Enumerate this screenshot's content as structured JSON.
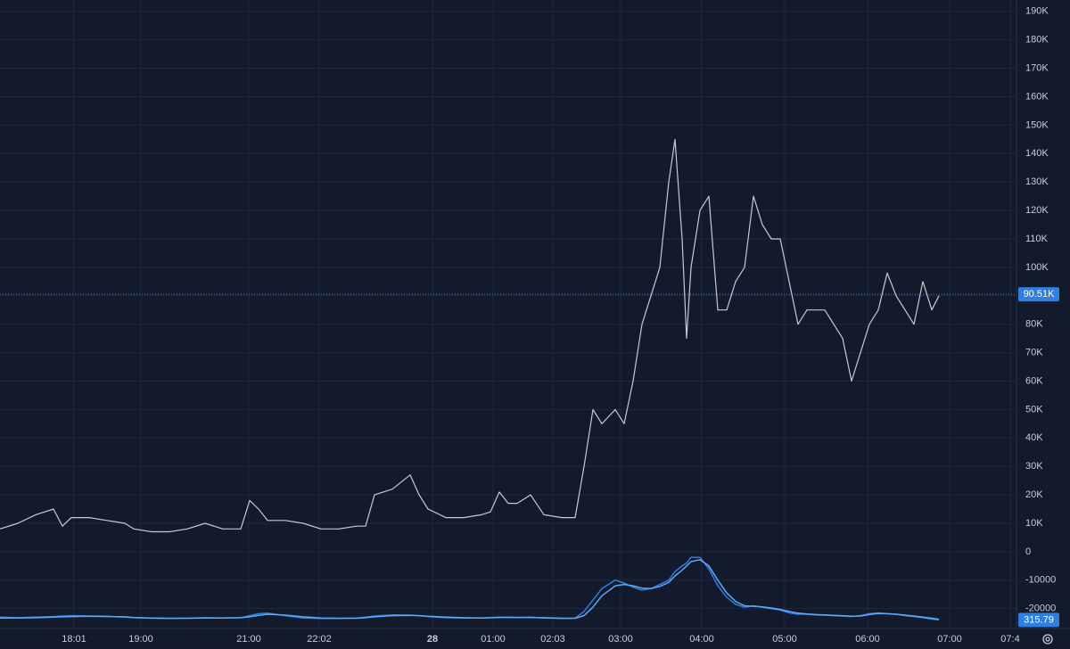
{
  "chart_data": {
    "type": "line",
    "x": [
      0,
      4,
      8,
      12,
      14,
      16,
      20,
      24,
      28,
      30,
      34,
      38,
      42,
      46,
      50,
      54,
      56,
      58,
      60,
      64,
      68,
      72,
      76,
      80,
      82,
      84,
      88,
      92,
      94,
      96,
      100,
      104,
      108,
      110,
      112,
      114,
      116,
      119,
      122,
      126,
      129,
      131,
      133,
      135,
      138,
      140,
      142,
      144,
      146,
      148,
      150,
      151.4,
      153,
      154,
      155,
      157,
      159,
      161,
      163,
      165,
      167,
      169,
      171,
      173,
      175,
      177,
      179,
      181,
      183,
      185,
      187,
      189,
      191,
      193,
      195,
      197,
      199,
      201,
      203,
      205,
      207,
      209,
      210.6
    ],
    "series": [
      {
        "color": "#c5cad6",
        "values": [
          8000,
          10000,
          13000,
          15000,
          9000,
          12000,
          12000,
          11000,
          10000,
          8000,
          7000,
          7000,
          8000,
          10000,
          8000,
          8000,
          18000,
          15000,
          11000,
          11000,
          10000,
          8000,
          8000,
          9000,
          9000,
          20000,
          22000,
          27000,
          20000,
          15000,
          12000,
          12000,
          13000,
          14000,
          21000,
          17000,
          17000,
          20000,
          13000,
          12000,
          12000,
          30000,
          50000,
          45000,
          50000,
          45000,
          60000,
          80000,
          90000,
          100000,
          130000,
          145000,
          110000,
          75000,
          100000,
          120000,
          125000,
          85000,
          85000,
          95000,
          100000,
          125000,
          115000,
          110000,
          110000,
          95000,
          80000,
          85000,
          85000,
          85000,
          80000,
          75000,
          60000,
          70000,
          80000,
          85000,
          98000,
          90000,
          85000,
          80000,
          95000,
          85000,
          90000
        ]
      },
      {
        "color": "#2f7fe0",
        "values": [
          -23000,
          -23200,
          -23000,
          -22800,
          -22600,
          -22500,
          -22600,
          -22700,
          -23000,
          -23200,
          -23400,
          -23500,
          -23400,
          -23200,
          -23300,
          -23200,
          -22500,
          -21800,
          -21600,
          -22500,
          -23300,
          -23500,
          -23500,
          -23300,
          -23000,
          -22600,
          -22200,
          -22300,
          -22500,
          -22800,
          -23200,
          -23300,
          -23300,
          -23200,
          -23000,
          -23000,
          -23100,
          -23000,
          -23300,
          -23500,
          -23400,
          -21000,
          -17000,
          -13000,
          -10000,
          -11000,
          -12500,
          -13500,
          -13000,
          -11500,
          -10000,
          -7000,
          -5000,
          -4000,
          -2000,
          -2000,
          -6000,
          -12000,
          -16000,
          -18500,
          -19500,
          -19000,
          -19500,
          -20000,
          -20500,
          -21500,
          -22000,
          -22000,
          -22200,
          -22300,
          -22500,
          -22600,
          -22800,
          -22500,
          -21800,
          -21500,
          -21800,
          -22000,
          -22500,
          -22800,
          -23200,
          -23700,
          -24000
        ]
      },
      {
        "color": "#5fa8f5",
        "values": [
          -23300,
          -23300,
          -23200,
          -23000,
          -22900,
          -22800,
          -22700,
          -22800,
          -22900,
          -23100,
          -23300,
          -23400,
          -23400,
          -23300,
          -23300,
          -23200,
          -22900,
          -22400,
          -22000,
          -22300,
          -22900,
          -23300,
          -23400,
          -23400,
          -23200,
          -22900,
          -22500,
          -22400,
          -22500,
          -22700,
          -23000,
          -23200,
          -23300,
          -23200,
          -23100,
          -23100,
          -23100,
          -23100,
          -23200,
          -23400,
          -23400,
          -22500,
          -19500,
          -15500,
          -12000,
          -11500,
          -12000,
          -12800,
          -13000,
          -12200,
          -10800,
          -8500,
          -6500,
          -5000,
          -3500,
          -2800,
          -5000,
          -10000,
          -14500,
          -17500,
          -19000,
          -19200,
          -19400,
          -19800,
          -20300,
          -21000,
          -21600,
          -21900,
          -22100,
          -22200,
          -22400,
          -22500,
          -22700,
          -22600,
          -22100,
          -21700,
          -21800,
          -22000,
          -22300,
          -22600,
          -23000,
          -23400,
          -23800
        ]
      }
    ],
    "price_label": {
      "value": 90510,
      "label": "90.51K"
    },
    "indicator_last": 315.79,
    "xlim": [
      0,
      228
    ],
    "xticks": [
      {
        "value": 16.6,
        "label": "18:01"
      },
      {
        "value": 31.6,
        "label": "19:00"
      },
      {
        "value": 55.8,
        "label": "21:00"
      },
      {
        "value": 71.6,
        "label": "22:02"
      },
      {
        "value": 97,
        "label": "28"
      },
      {
        "value": 110.6,
        "label": "01:00"
      },
      {
        "value": 124,
        "label": "02:03"
      },
      {
        "value": 139.2,
        "label": "03:00"
      },
      {
        "value": 157.4,
        "label": "04:00"
      },
      {
        "value": 176,
        "label": "05:00"
      },
      {
        "value": 194.6,
        "label": "06:00"
      },
      {
        "value": 213,
        "label": "07:00"
      },
      {
        "value": 226.6,
        "label": "07:4"
      }
    ],
    "ylim": [
      -27000,
      194000
    ],
    "yticks": [
      -20000,
      -10000,
      0,
      {
        "value": 10000,
        "label": "10K"
      },
      {
        "value": 20000,
        "label": "20K"
      },
      {
        "value": 30000,
        "label": "30K"
      },
      {
        "value": 40000,
        "label": "40K"
      },
      {
        "value": 50000,
        "label": "50K"
      },
      {
        "value": 60000,
        "label": "60K"
      },
      {
        "value": 70000,
        "label": "70K"
      },
      {
        "value": 80000,
        "label": "80K"
      },
      {
        "value": 90000,
        "label": "90K"
      },
      {
        "value": 100000,
        "label": "100K"
      },
      {
        "value": 110000,
        "label": "110K"
      },
      {
        "value": 120000,
        "label": "120K"
      },
      {
        "value": 130000,
        "label": "130K"
      },
      {
        "value": 140000,
        "label": "140K"
      },
      {
        "value": 150000,
        "label": "150K"
      },
      {
        "value": 160000,
        "label": "160K"
      },
      {
        "value": 170000,
        "label": "170K"
      },
      {
        "value": 180000,
        "label": "180K"
      },
      {
        "value": 190000,
        "label": "190K"
      }
    ],
    "grid": true
  }
}
